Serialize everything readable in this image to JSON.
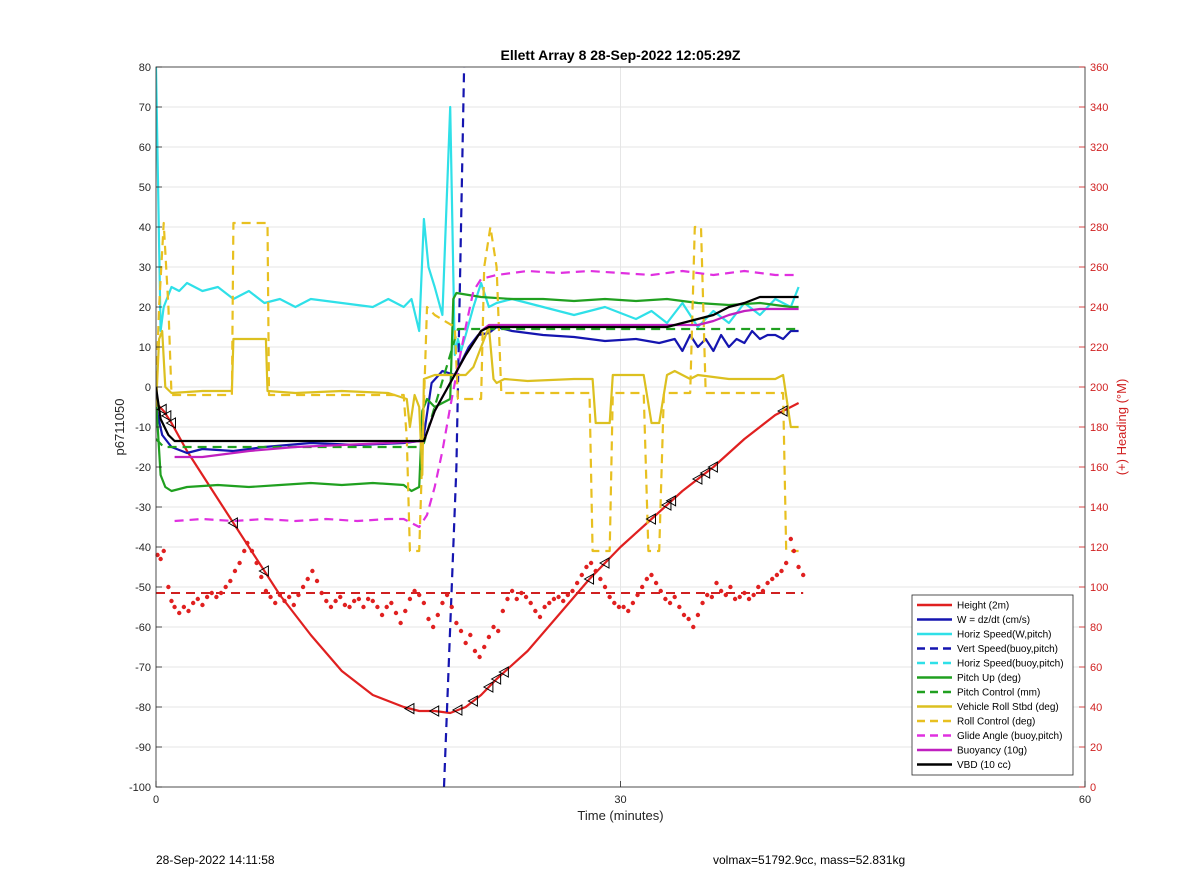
{
  "chart_data": {
    "type": "line",
    "title": "Ellett Array 8 28-Sep-2022 12:05:29Z",
    "xlabel": "Time (minutes)",
    "ylabel_left": "p6711050",
    "ylabel_right": "(+) Heading (°M)",
    "xlim": [
      0,
      60
    ],
    "ylim_left": [
      -100,
      80
    ],
    "ylim_right": [
      0,
      360
    ],
    "x_ticks": [
      "0",
      "30",
      "60"
    ],
    "y_ticks_left": [
      "80",
      "70",
      "60",
      "50",
      "40",
      "30",
      "20",
      "10",
      "0",
      "-10",
      "-20",
      "-30",
      "-40",
      "-50",
      "-60",
      "-70",
      "-80",
      "-90",
      "-100"
    ],
    "y_ticks_right": [
      "360",
      "340",
      "320",
      "300",
      "280",
      "260",
      "240",
      "220",
      "200",
      "180",
      "160",
      "140",
      "120",
      "100",
      "80",
      "60",
      "40",
      "20",
      "0"
    ],
    "grid": true,
    "legend_position": "bottom-right",
    "heading_reference_right": 97,
    "heading_points_right": [
      [
        0.1,
        116
      ],
      [
        0.3,
        114
      ],
      [
        0.5,
        118
      ],
      [
        0.8,
        100
      ],
      [
        1.0,
        93
      ],
      [
        1.2,
        90
      ],
      [
        1.5,
        87
      ],
      [
        1.8,
        90
      ],
      [
        2.1,
        88
      ],
      [
        2.4,
        92
      ],
      [
        2.7,
        94
      ],
      [
        3.0,
        91
      ],
      [
        3.3,
        95
      ],
      [
        3.6,
        97
      ],
      [
        3.9,
        95
      ],
      [
        4.2,
        97
      ],
      [
        4.5,
        100
      ],
      [
        4.8,
        103
      ],
      [
        5.1,
        108
      ],
      [
        5.4,
        112
      ],
      [
        5.7,
        118
      ],
      [
        5.9,
        122
      ],
      [
        6.2,
        118
      ],
      [
        6.5,
        112
      ],
      [
        6.8,
        105
      ],
      [
        7.1,
        98
      ],
      [
        7.4,
        95
      ],
      [
        7.7,
        92
      ],
      [
        8.0,
        96
      ],
      [
        8.3,
        93
      ],
      [
        8.6,
        95
      ],
      [
        8.9,
        91
      ],
      [
        9.2,
        96
      ],
      [
        9.5,
        100
      ],
      [
        9.8,
        104
      ],
      [
        10.1,
        108
      ],
      [
        10.4,
        103
      ],
      [
        10.7,
        97
      ],
      [
        11.0,
        93
      ],
      [
        11.3,
        90
      ],
      [
        11.6,
        93
      ],
      [
        11.9,
        95
      ],
      [
        12.2,
        91
      ],
      [
        12.5,
        90
      ],
      [
        12.8,
        93
      ],
      [
        13.1,
        94
      ],
      [
        13.4,
        90
      ],
      [
        13.7,
        94
      ],
      [
        14.0,
        93
      ],
      [
        14.3,
        90
      ],
      [
        14.6,
        86
      ],
      [
        14.9,
        90
      ],
      [
        15.2,
        92
      ],
      [
        15.5,
        87
      ],
      [
        15.8,
        82
      ],
      [
        16.1,
        88
      ],
      [
        16.4,
        94
      ],
      [
        16.7,
        98
      ],
      [
        17.0,
        96
      ],
      [
        17.3,
        92
      ],
      [
        17.6,
        84
      ],
      [
        17.9,
        80
      ],
      [
        18.2,
        86
      ],
      [
        18.5,
        92
      ],
      [
        18.8,
        96
      ],
      [
        19.1,
        90
      ],
      [
        19.4,
        82
      ],
      [
        19.7,
        78
      ],
      [
        20.0,
        72
      ],
      [
        20.3,
        76
      ],
      [
        20.6,
        68
      ],
      [
        20.9,
        65
      ],
      [
        21.2,
        70
      ],
      [
        21.5,
        75
      ],
      [
        21.8,
        80
      ],
      [
        22.1,
        78
      ],
      [
        22.4,
        88
      ],
      [
        22.7,
        94
      ],
      [
        23.0,
        98
      ],
      [
        23.3,
        94
      ],
      [
        23.6,
        97
      ],
      [
        23.9,
        95
      ],
      [
        24.2,
        92
      ],
      [
        24.5,
        88
      ],
      [
        24.8,
        85
      ],
      [
        25.1,
        90
      ],
      [
        25.4,
        92
      ],
      [
        25.7,
        94
      ],
      [
        26.0,
        95
      ],
      [
        26.3,
        93
      ],
      [
        26.6,
        96
      ],
      [
        26.9,
        98
      ],
      [
        27.2,
        102
      ],
      [
        27.5,
        106
      ],
      [
        27.8,
        110
      ],
      [
        28.1,
        112
      ],
      [
        28.4,
        108
      ],
      [
        28.7,
        104
      ],
      [
        29.0,
        100
      ],
      [
        29.3,
        95
      ],
      [
        29.6,
        92
      ],
      [
        29.9,
        90
      ],
      [
        30.2,
        90
      ],
      [
        30.5,
        88
      ],
      [
        30.8,
        92
      ],
      [
        31.1,
        96
      ],
      [
        31.4,
        100
      ],
      [
        31.7,
        104
      ],
      [
        32.0,
        106
      ],
      [
        32.3,
        102
      ],
      [
        32.6,
        98
      ],
      [
        32.9,
        94
      ],
      [
        33.2,
        92
      ],
      [
        33.5,
        95
      ],
      [
        33.8,
        90
      ],
      [
        34.1,
        86
      ],
      [
        34.4,
        84
      ],
      [
        34.7,
        80
      ],
      [
        35.0,
        86
      ],
      [
        35.3,
        92
      ],
      [
        35.6,
        96
      ],
      [
        35.9,
        95
      ],
      [
        36.2,
        102
      ],
      [
        36.5,
        98
      ],
      [
        36.8,
        96
      ],
      [
        37.1,
        100
      ],
      [
        37.4,
        94
      ],
      [
        37.7,
        95
      ],
      [
        38.0,
        97
      ],
      [
        38.3,
        94
      ],
      [
        38.6,
        96
      ],
      [
        38.9,
        100
      ],
      [
        39.2,
        98
      ],
      [
        39.5,
        102
      ],
      [
        39.8,
        104
      ],
      [
        40.1,
        106
      ],
      [
        40.4,
        108
      ],
      [
        40.7,
        112
      ],
      [
        41.0,
        124
      ],
      [
        41.2,
        118
      ],
      [
        41.5,
        110
      ],
      [
        41.8,
        106
      ]
    ],
    "series": [
      {
        "name": "Height (2m)",
        "color": "#e02020",
        "dash": "solid",
        "axis": "left",
        "x": [
          0,
          0.5,
          1,
          2,
          4,
          6,
          8,
          10,
          12,
          14,
          16,
          17,
          18,
          19,
          20,
          21,
          22,
          24,
          26,
          28,
          30,
          32,
          34,
          36,
          38,
          40,
          41.5
        ],
        "y": [
          -4,
          -6,
          -9,
          -16,
          -28,
          -40,
          -52,
          -62,
          -71,
          -77,
          -80,
          -81,
          -81,
          -81.5,
          -80,
          -77,
          -73,
          -66,
          -57,
          -48,
          -40,
          -33,
          -26,
          -20,
          -13,
          -7,
          -4
        ]
      },
      {
        "name": "W = dz/dt (cm/s)",
        "color": "#1515b0",
        "dash": "solid",
        "axis": "left",
        "x": [
          0,
          0.4,
          1,
          2,
          3,
          5,
          7,
          10,
          13,
          16,
          17,
          17.3,
          17.8,
          18.5,
          19.3,
          20.2,
          20.8,
          21.5,
          22,
          23,
          25,
          27,
          29,
          31,
          32.5,
          33.5,
          34,
          34.5,
          35,
          35.5,
          36,
          36.5,
          37,
          37.5,
          38,
          38.5,
          39,
          39.5,
          40,
          40.5,
          41,
          41.5
        ],
        "y": [
          -5,
          -12,
          -15,
          -16.5,
          -15.5,
          -16,
          -15,
          -14,
          -14.5,
          -14,
          -13.5,
          -12,
          1,
          4,
          3,
          10,
          13,
          13.5,
          15,
          14,
          13,
          12.5,
          11.5,
          12,
          11,
          12,
          9,
          13,
          10,
          12,
          9,
          13,
          10,
          12,
          11,
          14,
          12,
          13,
          13,
          12,
          14,
          14
        ]
      },
      {
        "name": "Horiz Speed(W,pitch)",
        "color": "#2fe0e8",
        "dash": "solid",
        "axis": "left",
        "x": [
          0,
          0.3,
          0.5,
          1,
          1.5,
          2,
          3,
          4,
          5,
          6,
          7,
          8,
          9,
          10,
          12,
          14,
          15,
          16,
          16.5,
          17,
          17.3,
          17.6,
          18,
          18.5,
          19,
          19.3,
          19.5,
          19.7,
          20,
          20.5,
          21,
          21.5,
          22,
          23,
          25,
          27,
          29,
          31,
          32,
          33,
          34,
          35,
          36,
          37,
          38,
          39,
          40,
          41,
          41.5
        ],
        "y": [
          80,
          14,
          20,
          25,
          24,
          26,
          24,
          25,
          22,
          24,
          21,
          22,
          20,
          22,
          21,
          20,
          22,
          20,
          22,
          14,
          42,
          30,
          25,
          18,
          70,
          8,
          12,
          9,
          13,
          20,
          26,
          20,
          21,
          22,
          20,
          18,
          20,
          17,
          19,
          16,
          21,
          15,
          19,
          16,
          21,
          18,
          22,
          20,
          25
        ]
      },
      {
        "name": "Vert Speed(buoy,pitch)",
        "color": "#1515b0",
        "dash": "dashed",
        "axis": "left",
        "x": [
          18.6,
          19.4,
          19.9
        ],
        "y": [
          -100,
          -20,
          80
        ]
      },
      {
        "name": "Horiz Speed(buoy,pitch)",
        "color": "#2fe0e8",
        "dash": "dashed",
        "axis": "left",
        "x": [],
        "y": []
      },
      {
        "name": "Pitch Up (deg)",
        "color": "#20a020",
        "dash": "solid",
        "axis": "left",
        "x": [
          0,
          0.3,
          0.6,
          1,
          2,
          4,
          6,
          8,
          10,
          12,
          14,
          16,
          16.5,
          17,
          17.2,
          17.5,
          18,
          18.5,
          19,
          19.2,
          19.4,
          21,
          23,
          25,
          27,
          29,
          31,
          33,
          35,
          37,
          39,
          41,
          41.5
        ],
        "y": [
          -3,
          -22,
          -25,
          -26,
          -25,
          -24.5,
          -25,
          -24.5,
          -24,
          -24.5,
          -24,
          -24.5,
          -26,
          -25,
          -6,
          -3,
          -5,
          -4,
          -3,
          22,
          23.5,
          22.5,
          22,
          22,
          21.5,
          22,
          21.5,
          22,
          21,
          20.5,
          21,
          20,
          20
        ]
      },
      {
        "name": "Pitch Control (mm)",
        "color": "#20a020",
        "dash": "dashed",
        "axis": "left",
        "x": [
          0,
          0.5,
          17,
          17.3,
          19.5,
          41.5
        ],
        "y": [
          -13,
          -15,
          -15,
          -14,
          14.5,
          14.5
        ]
      },
      {
        "name": "Vehicle Roll Stbd (deg)",
        "color": "#dcc020",
        "dash": "solid",
        "axis": "left",
        "x": [
          0,
          0.2,
          0.4,
          0.6,
          1,
          3,
          4.9,
          5.0,
          7.1,
          7.2,
          9,
          12,
          15,
          16.2,
          16.4,
          16.7,
          17,
          17.2,
          17.3,
          18,
          20,
          20.5,
          21.5,
          21.8,
          22,
          22.5,
          24,
          27,
          28.2,
          28.4,
          29.3,
          29.5,
          31.5,
          32.0,
          32.5,
          33,
          33.5,
          34,
          34.5,
          35,
          37,
          40,
          40.5,
          41.0,
          41.5
        ],
        "y": [
          -5,
          12,
          14,
          0,
          -1.5,
          -1,
          -1,
          12,
          12,
          -1,
          -1.5,
          -1,
          -1.5,
          -3,
          -10,
          -2,
          -5,
          -22,
          2,
          3,
          3,
          5,
          15,
          2,
          1,
          2,
          1.5,
          2,
          2,
          -9,
          -9,
          3,
          3,
          -9,
          -9,
          3,
          4,
          3,
          2,
          3,
          2,
          2,
          3,
          -10,
          -10
        ]
      },
      {
        "name": "Roll Control (deg)",
        "color": "#e8c020",
        "dash": "dashed",
        "axis": "left",
        "x": [
          0,
          0.2,
          0.5,
          0.8,
          1,
          4.9,
          5.0,
          7.2,
          7.3,
          16,
          16.2,
          16.4,
          17,
          17.5,
          18,
          19.3,
          19.5,
          21,
          21.2,
          21.6,
          22.0,
          22.3,
          28,
          28.2,
          29.3,
          29.5,
          31.5,
          31.8,
          32.5,
          32.8,
          34.5,
          34.8,
          35.2,
          35.5,
          40.5,
          40.7,
          41.5
        ],
        "y": [
          -2,
          20,
          41,
          20,
          -2,
          -2,
          41,
          41,
          -2,
          -2,
          -13,
          -41,
          -41,
          20,
          18,
          15,
          -3,
          -3,
          30,
          40,
          30,
          -1.5,
          -1.5,
          -41,
          -41,
          -1.5,
          -1.5,
          -41,
          -41,
          -1.5,
          -1.5,
          40,
          40,
          -1.5,
          -1.5,
          -41,
          -41
        ]
      },
      {
        "name": "Glide Angle (buoy,pitch)",
        "color": "#e030e0",
        "dash": "dashed",
        "axis": "left",
        "x": [
          1.2,
          3,
          5,
          7,
          9,
          11,
          13,
          15,
          16,
          16.5,
          17,
          17.5,
          18,
          18.5,
          19,
          19.5,
          20,
          20.5,
          21,
          22,
          24,
          26,
          28,
          30,
          32,
          34,
          36,
          38,
          40,
          41.5
        ],
        "y": [
          -33.5,
          -33,
          -33.5,
          -33,
          -33.5,
          -33,
          -33.5,
          -33,
          -33,
          -34,
          -35,
          -32,
          -25,
          -16,
          -5,
          5,
          15,
          24,
          27,
          28,
          29,
          28.5,
          29,
          28.5,
          28,
          29,
          28,
          29,
          28,
          28
        ]
      },
      {
        "name": "Buoyancy (10g)",
        "color": "#c020c0",
        "dash": "solid",
        "axis": "left",
        "x": [
          1.2,
          3,
          6,
          9,
          12,
          15,
          17.3,
          18,
          19,
          20,
          21,
          21.5,
          23,
          25,
          27,
          29,
          31,
          33,
          35,
          36,
          37,
          38,
          39,
          41.5
        ],
        "y": [
          -17.5,
          -17.5,
          -16,
          -15,
          -14.5,
          -14,
          -13.5,
          -6,
          1,
          8,
          14,
          15.5,
          15.5,
          15.5,
          15.5,
          15.5,
          15.5,
          15.5,
          15.5,
          16.5,
          18,
          19,
          19.5,
          19.5
        ]
      },
      {
        "name": "VBD (10 cc)",
        "color": "#000000",
        "dash": "solid",
        "axis": "left",
        "x": [
          0,
          0.3,
          0.8,
          1.2,
          3,
          6,
          9,
          12,
          15,
          17.3,
          18,
          19,
          20,
          21,
          21.5,
          22.5,
          24,
          27,
          30,
          33,
          34,
          35,
          36,
          37,
          38,
          39,
          41.5
        ],
        "y": [
          0,
          -8,
          -12,
          -13.5,
          -13.5,
          -13.5,
          -13.5,
          -13.5,
          -13.5,
          -13.5,
          -6,
          1,
          8,
          14,
          15,
          15,
          15,
          15,
          15,
          15,
          16,
          17,
          18,
          20,
          21,
          22.5,
          22.5
        ]
      }
    ],
    "markers_on": "Height (2m)",
    "marker_x": [
      0.4,
      0.7,
      1.0,
      5.0,
      7.0,
      16.4,
      18.0,
      19.5,
      20.5,
      21.5,
      22.0,
      22.5,
      28.0,
      29.0,
      32.0,
      33.0,
      33.3,
      35.0,
      35.5,
      36.0,
      40.5
    ]
  },
  "footer": {
    "left": "28-Sep-2022 14:11:58",
    "right": "volmax=51792.9cc, mass=52.831kg"
  }
}
